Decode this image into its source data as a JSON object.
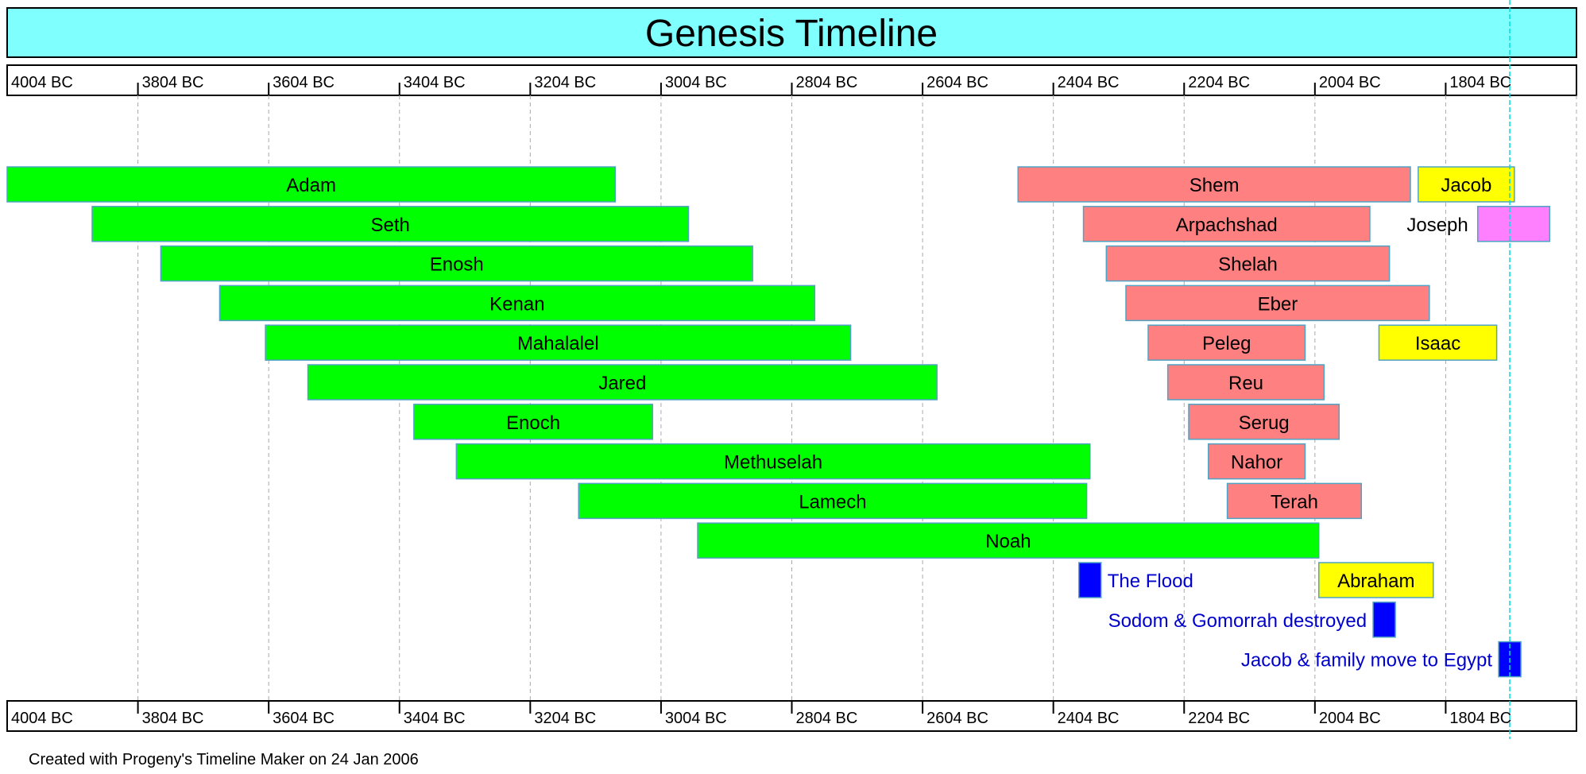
{
  "chart_data": {
    "type": "timeline",
    "title": "Genesis Timeline",
    "footer": "Created with Progeny's Timeline Maker on 24 Jan 2006",
    "axis": {
      "unit": "BC",
      "range": [
        4004,
        1604
      ],
      "ticks": [
        "4004 BC",
        "3804 BC",
        "3604 BC",
        "3404 BC",
        "3204 BC",
        "3004 BC",
        "2804 BC",
        "2604 BC",
        "2404 BC",
        "2204 BC",
        "2004 BC",
        "1804 BC"
      ],
      "tick_values": [
        4004,
        3804,
        3604,
        3404,
        3204,
        3004,
        2804,
        2604,
        2404,
        2204,
        2004,
        1804
      ],
      "grid": true,
      "marker_line": 1706
    },
    "colors": {
      "title_band": "#80ffff",
      "patriarch_pre_flood": "#00ff00",
      "patriarch_post_flood": "#ff8080",
      "patriarch_later": "#ffff00",
      "joseph": "#ff80ff",
      "event_mark": "#0000ff",
      "event_text": "#0000cc",
      "marker_line": "#00dddd"
    },
    "spans": [
      {
        "name": "Adam",
        "start": 4004,
        "end": 3074,
        "row": 0,
        "color": "#00ff00",
        "label_side": "inside"
      },
      {
        "name": "Seth",
        "start": 3874,
        "end": 2962,
        "row": 1,
        "color": "#00ff00",
        "label_side": "inside"
      },
      {
        "name": "Enosh",
        "start": 3769,
        "end": 2864,
        "row": 2,
        "color": "#00ff00",
        "label_side": "inside"
      },
      {
        "name": "Kenan",
        "start": 3679,
        "end": 2769,
        "row": 3,
        "color": "#00ff00",
        "label_side": "inside"
      },
      {
        "name": "Mahalalel",
        "start": 3609,
        "end": 2714,
        "row": 4,
        "color": "#00ff00",
        "label_side": "inside"
      },
      {
        "name": "Jared",
        "start": 3544,
        "end": 2582,
        "row": 5,
        "color": "#00ff00",
        "label_side": "inside"
      },
      {
        "name": "Enoch",
        "start": 3382,
        "end": 3017,
        "row": 6,
        "color": "#00ff00",
        "label_side": "inside"
      },
      {
        "name": "Methuselah",
        "start": 3317,
        "end": 2348,
        "row": 7,
        "color": "#00ff00",
        "label_side": "inside"
      },
      {
        "name": "Lamech",
        "start": 3130,
        "end": 2353,
        "row": 8,
        "color": "#00ff00",
        "label_side": "inside"
      },
      {
        "name": "Noah",
        "start": 2948,
        "end": 1998,
        "row": 9,
        "color": "#00ff00",
        "label_side": "inside"
      },
      {
        "name": "Shem",
        "start": 2458,
        "end": 1858,
        "row": 0,
        "color": "#ff8080",
        "label_side": "inside"
      },
      {
        "name": "Arpachshad",
        "start": 2358,
        "end": 1920,
        "row": 1,
        "color": "#ff8080",
        "label_side": "inside"
      },
      {
        "name": "Shelah",
        "start": 2323,
        "end": 1890,
        "row": 2,
        "color": "#ff8080",
        "label_side": "inside"
      },
      {
        "name": "Eber",
        "start": 2293,
        "end": 1829,
        "row": 3,
        "color": "#ff8080",
        "label_side": "inside"
      },
      {
        "name": "Peleg",
        "start": 2259,
        "end": 2019,
        "row": 4,
        "color": "#ff8080",
        "label_side": "inside"
      },
      {
        "name": "Reu",
        "start": 2229,
        "end": 1990,
        "row": 5,
        "color": "#ff8080",
        "label_side": "inside"
      },
      {
        "name": "Serug",
        "start": 2197,
        "end": 1967,
        "row": 6,
        "color": "#ff8080",
        "label_side": "inside"
      },
      {
        "name": "Nahor",
        "start": 2167,
        "end": 2019,
        "row": 7,
        "color": "#ff8080",
        "label_side": "inside"
      },
      {
        "name": "Terah",
        "start": 2138,
        "end": 1933,
        "row": 8,
        "color": "#ff8080",
        "label_side": "inside"
      },
      {
        "name": "Abraham",
        "start": 1998,
        "end": 1823,
        "row": 10,
        "color": "#ffff00",
        "label_side": "inside"
      },
      {
        "name": "Isaac",
        "start": 1906,
        "end": 1726,
        "row": 4,
        "color": "#ffff00",
        "label_side": "inside"
      },
      {
        "name": "Jacob",
        "start": 1846,
        "end": 1699,
        "row": 0,
        "color": "#ffff00",
        "label_side": "inside"
      },
      {
        "name": "Joseph",
        "start": 1755,
        "end": 1645,
        "row": 1,
        "color": "#ff80ff",
        "label_side": "left"
      }
    ],
    "events": [
      {
        "label": "The Flood",
        "year": 2348,
        "row": 10,
        "label_side": "right"
      },
      {
        "label": "Sodom & Gomorrah destroyed",
        "year": 1898,
        "row": 11,
        "label_side": "left"
      },
      {
        "label": "Jacob & family move to Egypt",
        "year": 1706,
        "row": 12,
        "label_side": "left"
      }
    ]
  }
}
